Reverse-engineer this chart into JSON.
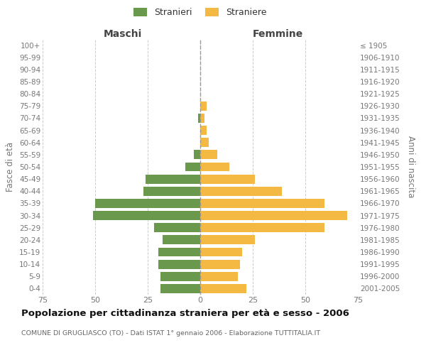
{
  "age_groups": [
    "0-4",
    "5-9",
    "10-14",
    "15-19",
    "20-24",
    "25-29",
    "30-34",
    "35-39",
    "40-44",
    "45-49",
    "50-54",
    "55-59",
    "60-64",
    "65-69",
    "70-74",
    "75-79",
    "80-84",
    "85-89",
    "90-94",
    "95-99",
    "100+"
  ],
  "birth_years": [
    "2001-2005",
    "1996-2000",
    "1991-1995",
    "1986-1990",
    "1981-1985",
    "1976-1980",
    "1971-1975",
    "1966-1970",
    "1961-1965",
    "1956-1960",
    "1951-1955",
    "1946-1950",
    "1941-1945",
    "1936-1940",
    "1931-1935",
    "1926-1930",
    "1921-1925",
    "1916-1920",
    "1911-1915",
    "1906-1910",
    "≤ 1905"
  ],
  "maschi": [
    19,
    19,
    20,
    20,
    18,
    22,
    51,
    50,
    27,
    26,
    7,
    3,
    0,
    0,
    1,
    0,
    0,
    0,
    0,
    0,
    0
  ],
  "femmine": [
    22,
    18,
    19,
    20,
    26,
    59,
    70,
    59,
    39,
    26,
    14,
    8,
    4,
    3,
    2,
    3,
    0,
    0,
    0,
    0,
    0
  ],
  "male_color": "#6a994e",
  "female_color": "#f4b942",
  "background_color": "#ffffff",
  "grid_color": "#cccccc",
  "title": "Popolazione per cittadinanza straniera per età e sesso - 2006",
  "subtitle": "COMUNE DI GRUGLIASCO (TO) - Dati ISTAT 1° gennaio 2006 - Elaborazione TUTTITALIA.IT",
  "legend_male": "Stranieri",
  "legend_female": "Straniere",
  "label_left": "Maschi",
  "label_right": "Femmine",
  "ylabel_left": "Fasce di età",
  "ylabel_right": "Anni di nascita",
  "xlim": 75
}
